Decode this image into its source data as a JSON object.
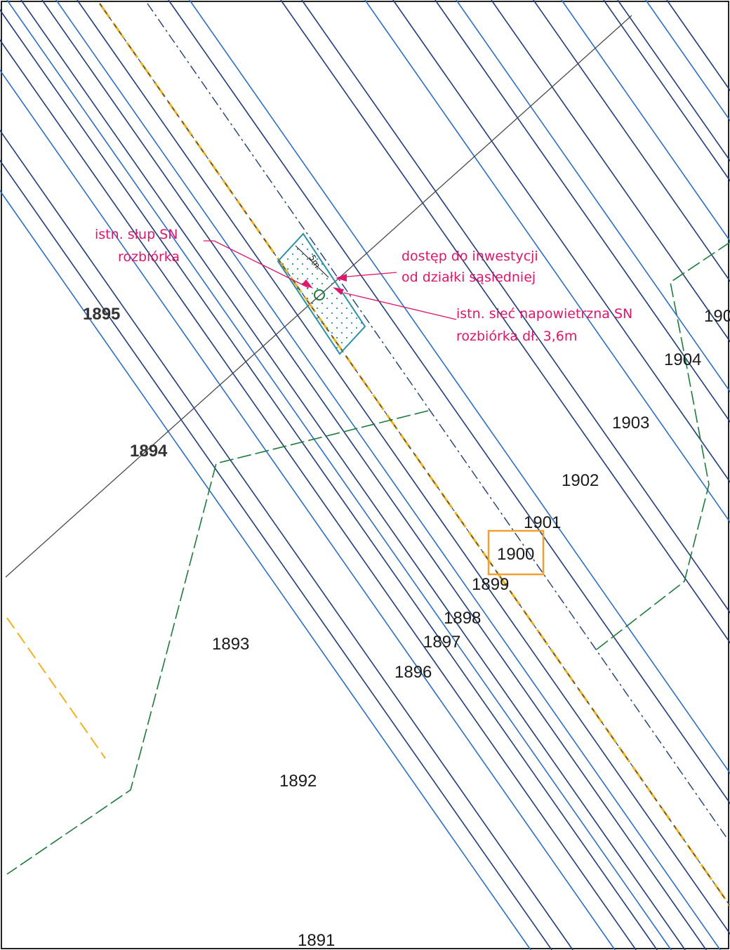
{
  "colors": {
    "parcel_line": "#1f3d7a",
    "parcel_line_light": "#2d6fc4",
    "building_line": "#1e7a3a",
    "road_highlight": "#f2b21c",
    "annotation": "#e0156b",
    "highlight_box": "#f0a030",
    "investment_area": "#2a8fa8",
    "section_line": "#4a4a4a"
  },
  "annotations": {
    "pole_line1": "istn. słup SN",
    "pole_line2": "rozbiórka",
    "access_line1": "dostęp do inwestycji",
    "access_line2": "od działki sąsiedniej",
    "network_line1": "istn. sieć napowietrzna SN",
    "network_line2": "rozbiórka dł. 3,6m",
    "dimension": "5m"
  },
  "parcels": {
    "p1895": "1895",
    "p1894": "1894",
    "p1893": "1893",
    "p1892": "1892",
    "p1891": "1891",
    "p1896": "1896",
    "p1897": "1897",
    "p1898": "1898",
    "p1899": "1899",
    "p1900": "1900",
    "p1901": "1901",
    "p1902": "1902",
    "p1903": "1903",
    "p1904": "1904",
    "p1905_partial": "190"
  },
  "highlighted_parcel": "1900",
  "icons": {
    "pole": "pole-circle-icon",
    "arrow": "arrow-icon"
  }
}
